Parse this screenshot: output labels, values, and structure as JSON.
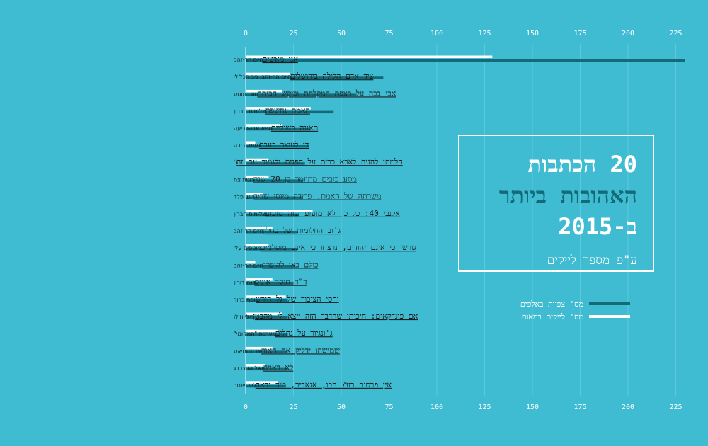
{
  "title": {
    "line1": "20 הכתבות",
    "line2": "האהובות ביותר",
    "line3": "ב-2015",
    "subtitle": "ע\"פ מספר לייקים"
  },
  "legend": {
    "views_label": "מס' צפיות באלפים",
    "likes_label": "מס' לייקים במאות"
  },
  "colors": {
    "background": "#3fbcd2",
    "views": "#146a78",
    "likes": "#ffffff"
  },
  "chart_data": {
    "type": "bar",
    "orientation": "horizontal",
    "xlim": [
      0,
      230
    ],
    "xticks": [
      0,
      25,
      50,
      75,
      100,
      125,
      150,
      175,
      200,
      225
    ],
    "grid": true,
    "legend_position": "right",
    "categories": [
      {
        "title": "אני מאשים",
        "author": "חיים הר-זהב"
      },
      {
        "title": "ציד אדם הלילה בירושלים",
        "author": "חיים הר-זהב, ניב חכלילי"
      },
      {
        "title": "אבי בכה על רצפת המקלחת וביקש הביתה",
        "author": "מורן מוטס"
      },
      {
        "title": "האמת נחשפת",
        "author": "שלומית הברון"
      },
      {
        "title": "תאונה בשוליים",
        "author": "ספא אבו-רביעה"
      },
      {
        "title": "די לעוצר בעבח",
        "author": "נעמה ריבה"
      },
      {
        "title": "חלמתי להניח לאבא כרית על הפנים ולגמור עם זה",
        "author": "נ'"
      },
      {
        "title": "מסע כזבים מתוזמר בן 20 שנה",
        "author": "רונית צח"
      },
      {
        "title": "משרתה של האמת. פרידה מיוסי שריד",
        "author": "רועי פלד"
      },
      {
        "title": "אלנבי 40: כל כך לא מזעזע שזה מזעזע",
        "author": "שלומית הברון"
      },
      {
        "title": "ג'וב החלומות של כחלון",
        "author": "חיים הר-זהב"
      },
      {
        "title": "גורשו כי אינם יהודים, נרצחו כי אינם מוסלמים",
        "author": "מוטסים עלי"
      },
      {
        "title": "כולם באו להיפרד",
        "author": "חיים הר-זהב"
      },
      {
        "title": "ד\"ר חוסר אונים",
        "author": "דנה דורון"
      },
      {
        "title": "יחסי הציבור של גל הירש",
        "author": "יוסף ברוך"
      },
      {
        "title": "אם פונדקאים: חיכיתי שהדבר הזה ייצא לי מהבטן",
        "author": "רילי וזילו"
      },
      {
        "title": "ג'ונגיור על גחלים",
        "author": "מערכת \"המקומי\""
      },
      {
        "title": "שמישהו ידליק את האור",
        "author": "שיר נחמיאס"
      },
      {
        "title": "לא ראויה",
        "author": "יואל הרצברג"
      },
      {
        "title": "אין פרסום רע? חכו, אגאדיר, מיד נראה",
        "author": "ליזי ויינטר"
      }
    ],
    "series": [
      {
        "name": "מס' צפיות באלפים",
        "values": [
          230,
          72,
          58,
          46,
          34,
          33,
          31,
          30,
          30,
          28,
          27,
          27,
          26,
          25,
          22,
          22,
          22,
          22,
          22,
          21
        ]
      },
      {
        "name": "מס' לייקים במאות",
        "values": [
          129,
          23,
          19,
          34,
          19,
          5,
          12,
          12,
          9,
          35,
          14,
          12,
          5,
          14,
          21,
          19,
          17,
          14,
          10,
          17
        ]
      }
    ]
  }
}
